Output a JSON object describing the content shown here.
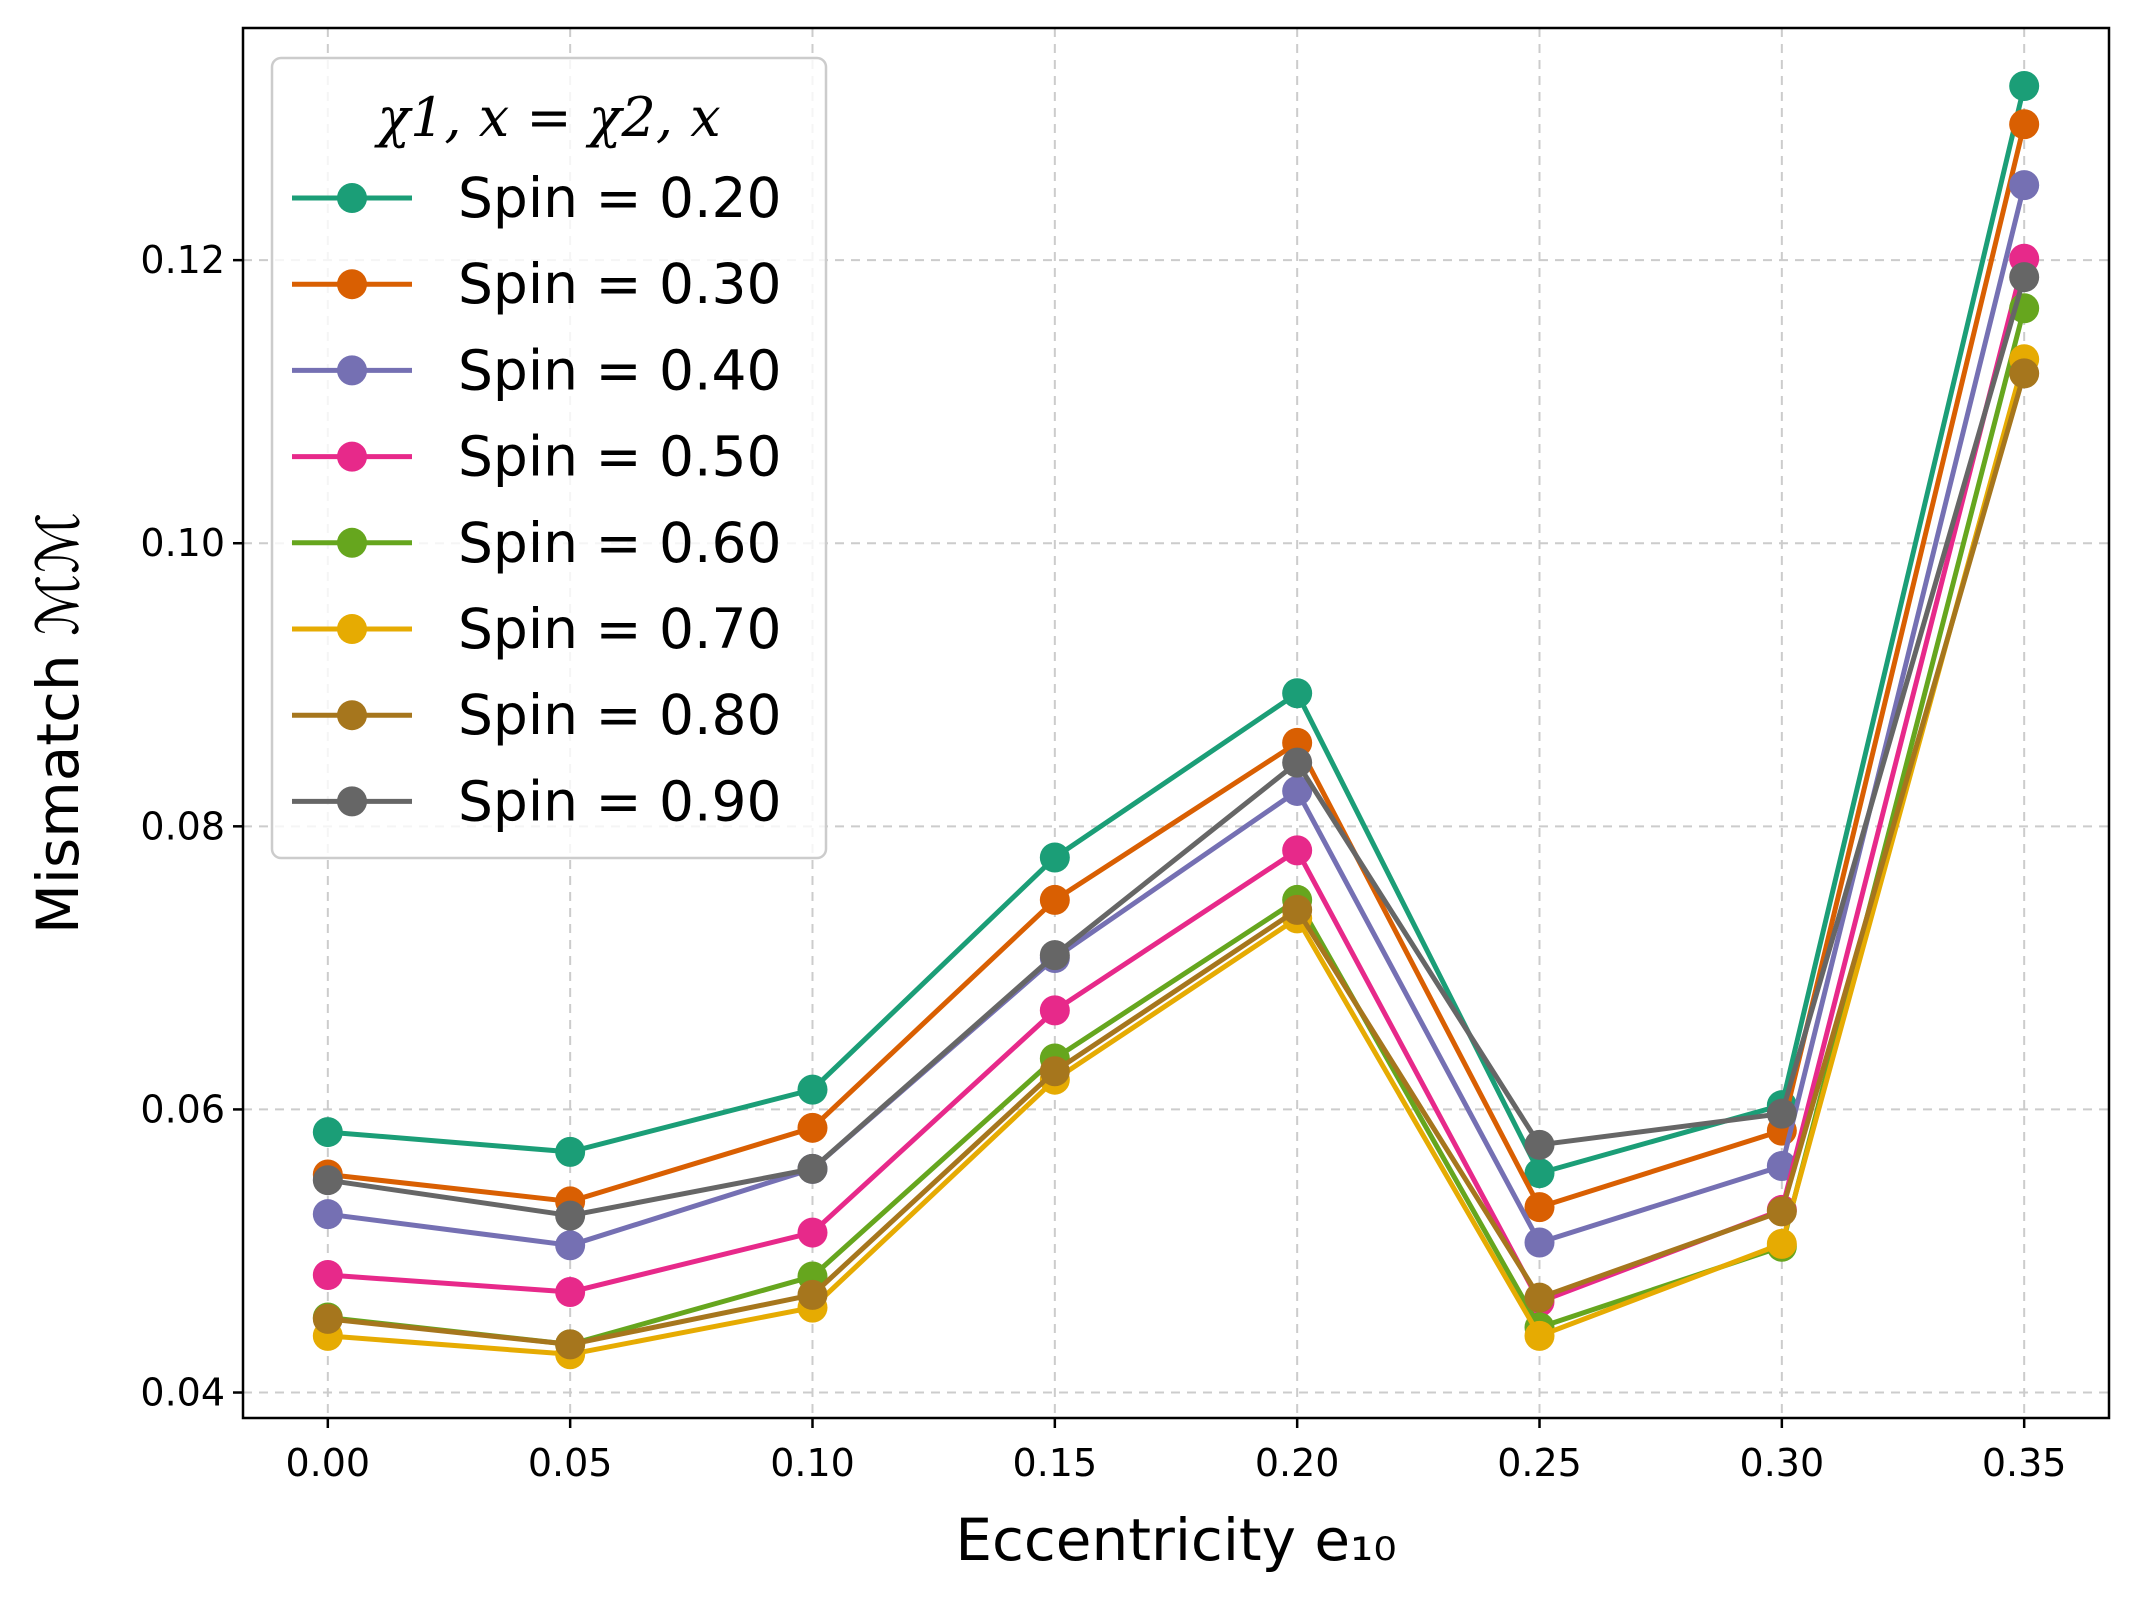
{
  "chart_data": {
    "type": "line",
    "title": "",
    "xlabel": "Eccentricity e₁₀",
    "ylabel": "Mismatch ℳℳ",
    "x": [
      0.0,
      0.05,
      0.1,
      0.15,
      0.2,
      0.25,
      0.3,
      0.35
    ],
    "x_tick_labels": [
      "0.00",
      "0.05",
      "0.10",
      "0.15",
      "0.20",
      "0.25",
      "0.30",
      "0.35"
    ],
    "y_ticks": [
      0.04,
      0.06,
      0.08,
      0.1,
      0.12
    ],
    "y_tick_labels": [
      "0.04",
      "0.06",
      "0.08",
      "0.10",
      "0.12"
    ],
    "xlim": [
      -0.0175,
      0.3675
    ],
    "ylim": [
      0.0382,
      0.1364
    ],
    "grid": true,
    "legend_position": "upper-left",
    "legend_title": "χ1, x = χ2, x",
    "series": [
      {
        "name": "Spin = 0.20",
        "color": "#1b9e77",
        "values": [
          0.0584,
          0.057,
          0.0614,
          0.0778,
          0.0894,
          0.0555,
          0.0603,
          0.1323
        ]
      },
      {
        "name": "Spin = 0.30",
        "color": "#d95f02",
        "values": [
          0.0554,
          0.0535,
          0.0587,
          0.0748,
          0.0859,
          0.0531,
          0.0585,
          0.1296
        ]
      },
      {
        "name": "Spin = 0.40",
        "color": "#7570b3",
        "values": [
          0.0526,
          0.0504,
          0.0558,
          0.0707,
          0.0825,
          0.0506,
          0.056,
          0.1253
        ]
      },
      {
        "name": "Spin = 0.50",
        "color": "#e7298a",
        "values": [
          0.0483,
          0.0471,
          0.0513,
          0.067,
          0.0783,
          0.0464,
          0.0529,
          0.1201
        ]
      },
      {
        "name": "Spin = 0.60",
        "color": "#66a61e",
        "values": [
          0.0453,
          0.0434,
          0.0482,
          0.0636,
          0.0748,
          0.0446,
          0.0503,
          0.1166
        ]
      },
      {
        "name": "Spin = 0.70",
        "color": "#e6ab02",
        "values": [
          0.044,
          0.0427,
          0.046,
          0.0621,
          0.0735,
          0.044,
          0.0505,
          0.113
        ]
      },
      {
        "name": "Spin = 0.80",
        "color": "#a6761d",
        "values": [
          0.0452,
          0.0434,
          0.0469,
          0.0627,
          0.0741,
          0.0467,
          0.0528,
          0.112
        ]
      },
      {
        "name": "Spin = 0.90",
        "color": "#666666",
        "values": [
          0.055,
          0.0525,
          0.0558,
          0.0709,
          0.0845,
          0.0575,
          0.0597,
          0.1188
        ]
      }
    ]
  }
}
